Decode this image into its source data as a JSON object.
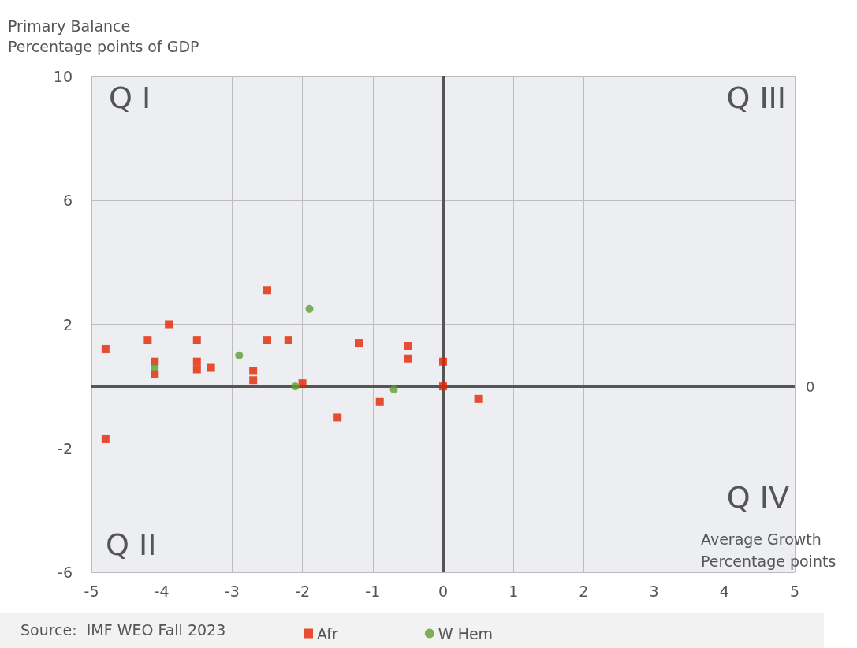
{
  "chart_data": {
    "type": "scatter",
    "ylabel": "Primary Balance\nPercentage points of GDP",
    "xlabel": "Average Growth\nPercentage points",
    "xlim": [
      -5,
      5
    ],
    "xticks": [
      -5,
      -4,
      -3,
      -2,
      -1,
      0,
      1,
      2,
      3,
      4,
      5
    ],
    "ylim": [
      -6,
      10
    ],
    "yticks": [
      -6,
      -2,
      2,
      6,
      10
    ],
    "grid": true,
    "legend": "bottom",
    "ref_lines": [
      {
        "axis": "y",
        "value": 0,
        "label": "0"
      },
      {
        "axis": "x",
        "value": 0,
        "label": null
      }
    ],
    "annotations": [
      "Q I",
      "Q III",
      "Q IV",
      "Q II",
      "Source:  IMF WEO Fall 2023"
    ],
    "series": [
      {
        "name": "Afr",
        "color": "#e32400",
        "marker": "square",
        "x": [
          -4.8,
          -4.8,
          -4.2,
          -3.9,
          -4.1,
          -4.1,
          -3.5,
          -3.5,
          -3.5,
          -3.3,
          -2.7,
          -2.7,
          -2.5,
          -2.5,
          -2.2,
          -2.0,
          -1.2,
          -0.5,
          -0.5,
          0,
          0,
          -0.9,
          -1.5,
          0.5
        ],
        "values": [
          1.2,
          -1.7,
          1.5,
          2.0,
          0.8,
          0.4,
          1.5,
          0.8,
          0.55,
          0.6,
          0.5,
          0.2,
          3.1,
          1.5,
          1.5,
          0.1,
          1.4,
          1.3,
          0.9,
          0.8,
          0,
          -0.5,
          -1.0,
          -0.4
        ]
      },
      {
        "name": "W Hem",
        "color": "#5f9e33",
        "marker": "circle",
        "x": [
          -1.9,
          -2.9,
          -4.1,
          -2.1,
          -0.7
        ],
        "values": [
          2.5,
          1.0,
          0.6,
          0.0,
          -0.1
        ]
      }
    ]
  }
}
